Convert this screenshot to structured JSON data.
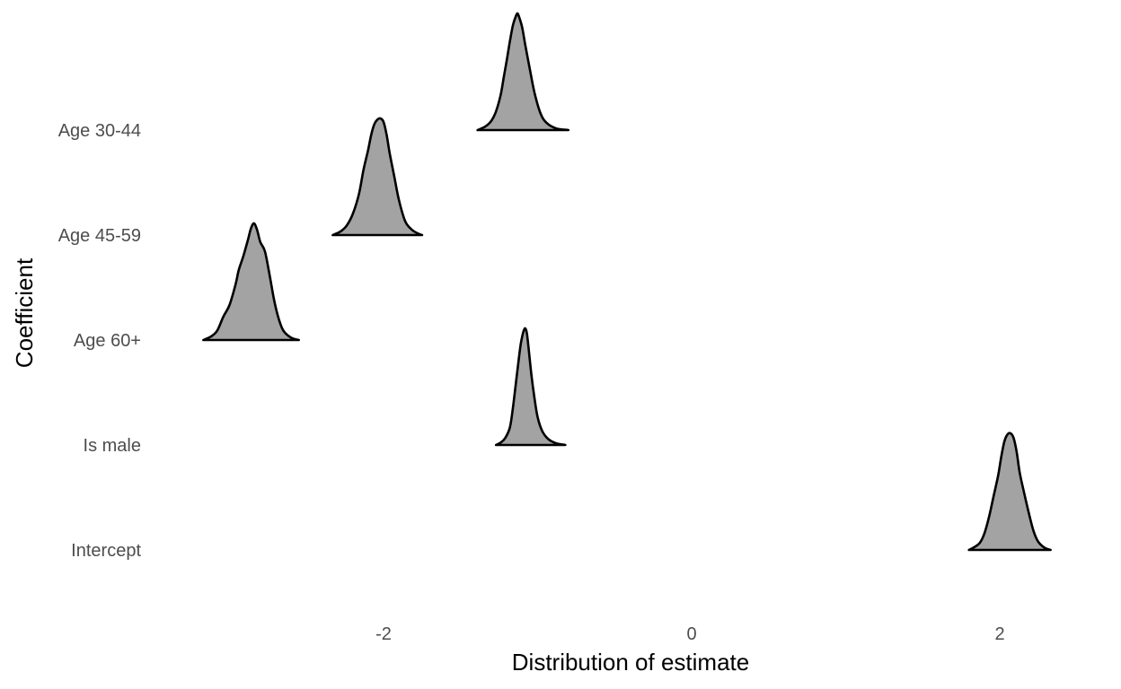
{
  "chart_data": {
    "type": "ridgeline",
    "xlabel": "Distribution of estimate",
    "ylabel": "Coefficient",
    "xticks": [
      -2,
      0,
      2
    ],
    "xtick_labels": [
      "-2",
      "0",
      "2"
    ],
    "xlim": [
      -3.6,
      2.6
    ],
    "categories": [
      "Intercept",
      "Is male",
      "Age 60+",
      "Age 45-59",
      "Age 30-44"
    ],
    "fill_color": "#a3a3a3",
    "line_color": "#000000",
    "grid": false,
    "series": [
      {
        "label": "Intercept",
        "x_range": [
          1.8,
          2.33
        ],
        "profile": [
          [
            1.8,
            0.0
          ],
          [
            1.83,
            0.02
          ],
          [
            1.87,
            0.06
          ],
          [
            1.9,
            0.14
          ],
          [
            1.93,
            0.28
          ],
          [
            1.96,
            0.46
          ],
          [
            1.99,
            0.64
          ],
          [
            2.01,
            0.8
          ],
          [
            2.03,
            0.93
          ],
          [
            2.05,
            0.99
          ],
          [
            2.07,
            1.0
          ],
          [
            2.09,
            0.96
          ],
          [
            2.11,
            0.84
          ],
          [
            2.13,
            0.66
          ],
          [
            2.16,
            0.48
          ],
          [
            2.19,
            0.31
          ],
          [
            2.22,
            0.16
          ],
          [
            2.25,
            0.07
          ],
          [
            2.29,
            0.02
          ],
          [
            2.33,
            0.0
          ]
        ]
      },
      {
        "label": "Is male",
        "x_range": [
          -1.27,
          -0.82
        ],
        "profile": [
          [
            -1.27,
            0.0
          ],
          [
            -1.24,
            0.02
          ],
          [
            -1.21,
            0.06
          ],
          [
            -1.18,
            0.15
          ],
          [
            -1.16,
            0.32
          ],
          [
            -1.14,
            0.54
          ],
          [
            -1.12,
            0.76
          ],
          [
            -1.11,
            0.86
          ],
          [
            -1.1,
            0.93
          ],
          [
            -1.09,
            0.98
          ],
          [
            -1.08,
            1.0
          ],
          [
            -1.07,
            0.96
          ],
          [
            -1.06,
            0.85
          ],
          [
            -1.04,
            0.6
          ],
          [
            -1.02,
            0.4
          ],
          [
            -1.0,
            0.24
          ],
          [
            -0.97,
            0.12
          ],
          [
            -0.93,
            0.05
          ],
          [
            -0.88,
            0.015
          ],
          [
            -0.82,
            0.0
          ]
        ]
      },
      {
        "label": "Age 60+",
        "x_range": [
          -3.17,
          -2.55
        ],
        "profile": [
          [
            -3.17,
            0.0
          ],
          [
            -3.12,
            0.03
          ],
          [
            -3.08,
            0.08
          ],
          [
            -3.04,
            0.2
          ],
          [
            -3.0,
            0.3
          ],
          [
            -2.96,
            0.48
          ],
          [
            -2.94,
            0.6
          ],
          [
            -2.91,
            0.72
          ],
          [
            -2.88,
            0.86
          ],
          [
            -2.86,
            0.96
          ],
          [
            -2.84,
            1.0
          ],
          [
            -2.82,
            0.94
          ],
          [
            -2.8,
            0.84
          ],
          [
            -2.77,
            0.76
          ],
          [
            -2.74,
            0.56
          ],
          [
            -2.71,
            0.34
          ],
          [
            -2.68,
            0.18
          ],
          [
            -2.65,
            0.08
          ],
          [
            -2.6,
            0.02
          ],
          [
            -2.55,
            0.0
          ]
        ]
      },
      {
        "label": "Age 45-59",
        "x_range": [
          -2.33,
          -1.75
        ],
        "profile": [
          [
            -2.33,
            0.0
          ],
          [
            -2.28,
            0.03
          ],
          [
            -2.24,
            0.08
          ],
          [
            -2.2,
            0.18
          ],
          [
            -2.16,
            0.35
          ],
          [
            -2.13,
            0.56
          ],
          [
            -2.1,
            0.73
          ],
          [
            -2.08,
            0.86
          ],
          [
            -2.06,
            0.95
          ],
          [
            -2.04,
            0.99
          ],
          [
            -2.02,
            1.0
          ],
          [
            -2.0,
            0.97
          ],
          [
            -1.98,
            0.86
          ],
          [
            -1.96,
            0.7
          ],
          [
            -1.93,
            0.5
          ],
          [
            -1.9,
            0.3
          ],
          [
            -1.86,
            0.12
          ],
          [
            -1.82,
            0.05
          ],
          [
            -1.78,
            0.015
          ],
          [
            -1.75,
            0.0
          ]
        ]
      },
      {
        "label": "Age 30-44",
        "x_range": [
          -1.39,
          -0.8
        ],
        "profile": [
          [
            -1.39,
            0.0
          ],
          [
            -1.34,
            0.03
          ],
          [
            -1.3,
            0.08
          ],
          [
            -1.27,
            0.16
          ],
          [
            -1.24,
            0.3
          ],
          [
            -1.22,
            0.45
          ],
          [
            -1.2,
            0.6
          ],
          [
            -1.18,
            0.76
          ],
          [
            -1.16,
            0.9
          ],
          [
            -1.14,
            0.98
          ],
          [
            -1.13,
            1.0
          ],
          [
            -1.12,
            0.97
          ],
          [
            -1.1,
            0.88
          ],
          [
            -1.08,
            0.73
          ],
          [
            -1.05,
            0.52
          ],
          [
            -1.02,
            0.32
          ],
          [
            -0.98,
            0.14
          ],
          [
            -0.94,
            0.06
          ],
          [
            -0.88,
            0.015
          ],
          [
            -0.8,
            0.0
          ]
        ]
      }
    ]
  }
}
